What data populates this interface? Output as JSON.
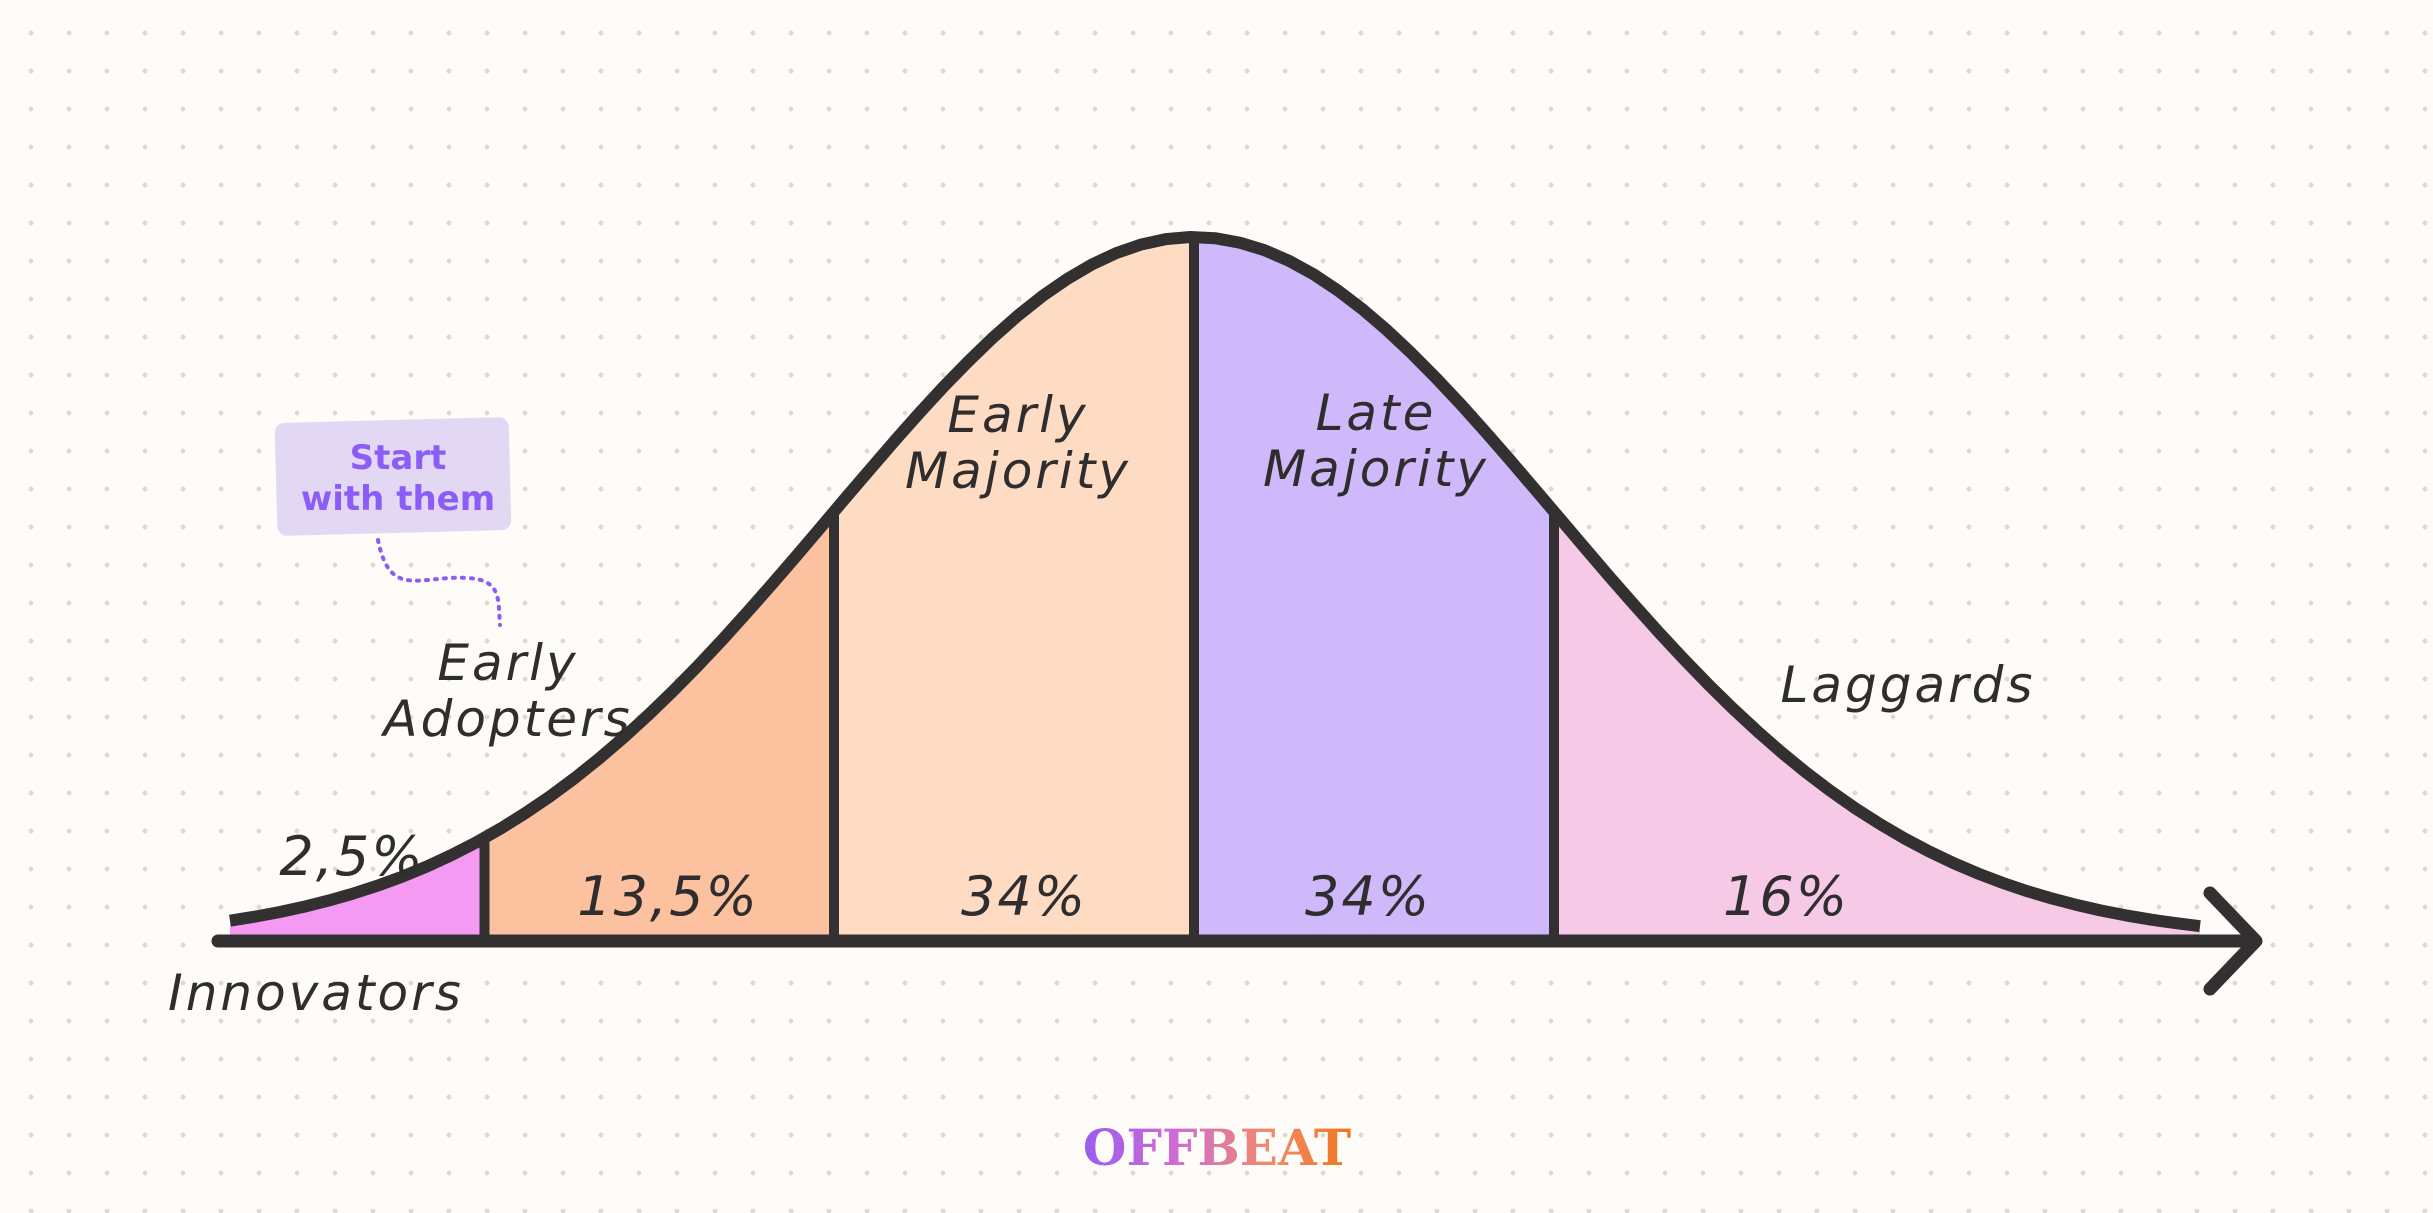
{
  "segments": [
    {
      "name": "Innovators",
      "name_lines": [
        "Innovators"
      ],
      "percent": 2.5,
      "percent_label": "2,5%",
      "color": "#f49af2"
    },
    {
      "name": "Early Adopters",
      "name_lines": [
        "Early",
        "Adopters"
      ],
      "percent": 13.5,
      "percent_label": "13,5%",
      "color": "#fcc19f"
    },
    {
      "name": "Early Majority",
      "name_lines": [
        "Early",
        "Majority"
      ],
      "percent": 34,
      "percent_label": "34%",
      "color": "#fedcc3"
    },
    {
      "name": "Late Majority",
      "name_lines": [
        "Late",
        "Majority"
      ],
      "percent": 34,
      "percent_label": "34%",
      "color": "#cfb9fb"
    },
    {
      "name": "Laggards",
      "name_lines": [
        "Laggards"
      ],
      "percent": 16,
      "percent_label": "16%",
      "color": "#f6c9e6"
    }
  ],
  "annotation": {
    "lines": [
      "Start",
      "with them"
    ],
    "color": "#8b5cf6",
    "bg_color": "#e2d8f4"
  },
  "brand": {
    "text": "OFFBEAT",
    "colors": [
      "#9b5cf0",
      "#d06bd4",
      "#f2896a",
      "#f0761e"
    ]
  },
  "colors": {
    "outline": "#333031",
    "background": "#fdfcf8"
  }
}
